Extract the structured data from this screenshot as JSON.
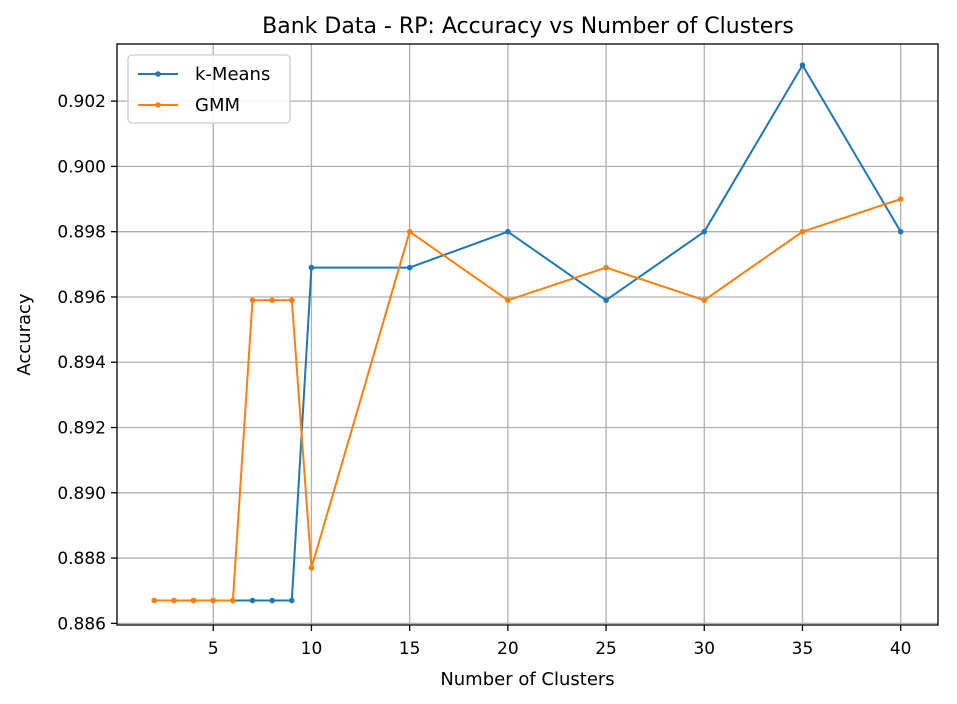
{
  "chart_data": {
    "type": "line",
    "title": "Bank Data - RP: Accuracy vs Number of Clusters",
    "xlabel": "Number of Clusters",
    "ylabel": "Accuracy",
    "xlim": [
      0.1,
      41.9
    ],
    "ylim": [
      0.88595,
      0.90375
    ],
    "xticks": [
      5,
      10,
      15,
      20,
      25,
      30,
      35,
      40
    ],
    "yticks": [
      0.886,
      0.888,
      0.89,
      0.892,
      0.894,
      0.896,
      0.898,
      0.9,
      0.902
    ],
    "ytick_labels": [
      "0.886",
      "0.888",
      "0.890",
      "0.892",
      "0.894",
      "0.896",
      "0.898",
      "0.900",
      "0.902"
    ],
    "grid": true,
    "legend": "upper-left",
    "series": [
      {
        "name": "k-Means",
        "color": "#1f77b4",
        "x": [
          2,
          3,
          4,
          5,
          6,
          7,
          8,
          9,
          10,
          15,
          20,
          25,
          30,
          35,
          40
        ],
        "y": [
          0.8867,
          0.8867,
          0.8867,
          0.8867,
          0.8867,
          0.8867,
          0.8867,
          0.8867,
          0.8969,
          0.8969,
          0.898,
          0.8959,
          0.898,
          0.9031,
          0.898
        ]
      },
      {
        "name": "GMM",
        "color": "#ff7f0e",
        "x": [
          2,
          3,
          4,
          5,
          6,
          7,
          8,
          9,
          10,
          15,
          20,
          25,
          30,
          35,
          40
        ],
        "y": [
          0.8867,
          0.8867,
          0.8867,
          0.8867,
          0.8867,
          0.8959,
          0.8959,
          0.8959,
          0.8877,
          0.898,
          0.8959,
          0.8969,
          0.8959,
          0.898,
          0.899
        ]
      }
    ]
  }
}
